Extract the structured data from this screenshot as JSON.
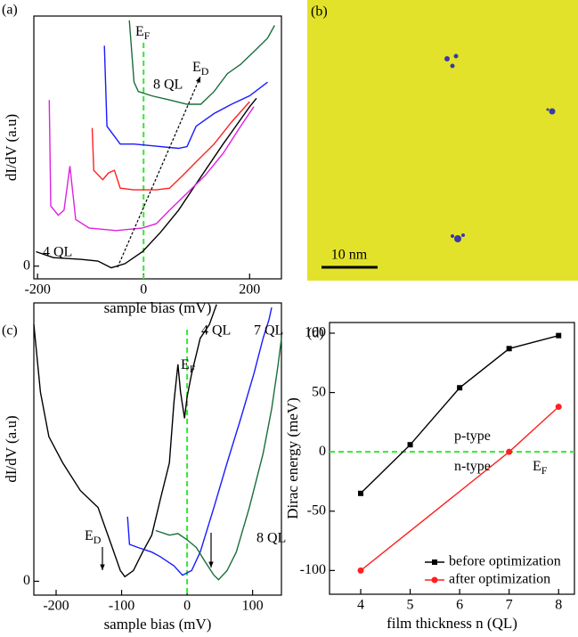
{
  "chart_data": [
    {
      "type": "line",
      "label": "(a)",
      "xlabel": "sample bias (mV)",
      "ylabel": "dI/dV (a.u)",
      "xlim": [
        -207,
        260
      ],
      "ylim": [
        -0.15,
        2.95
      ],
      "xticks": [
        -200,
        0,
        200
      ],
      "yticks": [
        0
      ],
      "reference_lines": [
        {
          "axis": "x",
          "value": 0,
          "color": "#33e833"
        }
      ],
      "annotations": [
        {
          "text": "E",
          "sub": "F"
        },
        {
          "text": "E",
          "sub": "D"
        }
      ],
      "series": [
        {
          "name": "4 QL",
          "color": "#000000",
          "x": [
            -203,
            -170,
            -119,
            -86,
            -61,
            -35,
            -2,
            32,
            66,
            99,
            150,
            200,
            213
          ],
          "values": [
            0.17,
            0.1,
            0.08,
            0.06,
            -0.02,
            0.03,
            0.17,
            0.4,
            0.66,
            0.97,
            1.44,
            1.88,
            1.98
          ]
        },
        {
          "color": "#e020e0",
          "x": [
            -178,
            -175,
            -161,
            -150,
            -139,
            -128,
            -103,
            -52,
            -2,
            24,
            49,
            82,
            116,
            150,
            183,
            208
          ],
          "values": [
            1.96,
            0.71,
            0.6,
            0.66,
            1.18,
            0.55,
            0.45,
            0.42,
            0.45,
            0.5,
            0.66,
            0.86,
            1.07,
            1.33,
            1.65,
            1.88
          ]
        },
        {
          "color": "#ff2020",
          "x": [
            -97,
            -94,
            -77,
            -66,
            -55,
            -44,
            -18,
            24,
            49,
            74,
            99,
            133,
            166,
            200
          ],
          "values": [
            1.63,
            1.13,
            1.02,
            1.1,
            1.13,
            0.92,
            0.9,
            0.9,
            0.92,
            1.07,
            1.23,
            1.44,
            1.7,
            1.94
          ]
        },
        {
          "color": "#1a1aff",
          "x": [
            -74,
            -69,
            -44,
            -18,
            15,
            66,
            82,
            99,
            133,
            166,
            200,
            234
          ],
          "values": [
            2.6,
            1.65,
            1.44,
            1.44,
            1.42,
            1.39,
            1.41,
            1.65,
            1.8,
            1.91,
            2.01,
            2.17
          ]
        },
        {
          "name": "8 QL",
          "color": "#1a6e3a",
          "x": [
            -27,
            -18,
            -10,
            15,
            49,
            82,
            108,
            133,
            158,
            183,
            208,
            234,
            247
          ],
          "values": [
            2.9,
            2.17,
            2.06,
            2.01,
            1.96,
            1.91,
            1.91,
            2.06,
            2.27,
            2.38,
            2.53,
            2.69,
            2.84
          ]
        }
      ]
    },
    {
      "type": "line",
      "label": "(c)",
      "xlabel": "sample bias (mV)",
      "ylabel": "dI/dV (a.u)",
      "xlim": [
        -234,
        144
      ],
      "ylim": [
        -0.09,
        1.81
      ],
      "xticks": [
        -200,
        -100,
        0,
        100
      ],
      "yticks": [
        0
      ],
      "reference_lines": [
        {
          "axis": "x",
          "value": 0,
          "color": "#33e833"
        }
      ],
      "annotations": [
        {
          "text": "E",
          "sub": "F"
        },
        {
          "text": "E",
          "sub": "D"
        }
      ],
      "series": [
        {
          "name": "4 QL",
          "color": "#000000",
          "x": [
            -234,
            -224,
            -211,
            -190,
            -163,
            -136,
            -116,
            -102,
            -95,
            -82,
            -68,
            -54,
            -41,
            -27,
            -20,
            -14,
            -10,
            -4,
            0,
            7,
            20,
            34,
            45
          ],
          "values": [
            1.67,
            1.23,
            0.94,
            0.77,
            0.59,
            0.48,
            0.24,
            0.07,
            0.03,
            0.07,
            0.19,
            0.3,
            0.53,
            0.77,
            1.17,
            1.41,
            1.23,
            1.06,
            1.2,
            1.35,
            1.58,
            1.67,
            1.8
          ]
        },
        {
          "name": "7 QL",
          "color": "#1a1aff",
          "x": [
            -91,
            -88,
            -75,
            -54,
            -41,
            -20,
            -7,
            7,
            20,
            41,
            61,
            82,
            102,
            116,
            125,
            129
          ],
          "values": [
            0.42,
            0.24,
            0.22,
            0.19,
            0.16,
            0.1,
            0.04,
            0.07,
            0.19,
            0.48,
            0.77,
            1.06,
            1.35,
            1.58,
            1.7,
            1.78
          ]
        },
        {
          "name": "8 QL",
          "color": "#1a6e3a",
          "x": [
            -48,
            -27,
            -14,
            0,
            14,
            27,
            41,
            48,
            61,
            75,
            95,
            116,
            129,
            139,
            144
          ],
          "values": [
            0.33,
            0.3,
            0.31,
            0.27,
            0.22,
            0.13,
            0.04,
            0.01,
            0.07,
            0.19,
            0.48,
            0.83,
            1.12,
            1.41,
            1.58
          ]
        }
      ]
    },
    {
      "type": "line",
      "label": "(d)",
      "xlabel": "film thickness n (QL)",
      "ylabel": "Dirac energy (meV)",
      "xlim": [
        3.37,
        8.32
      ],
      "ylim": [
        -120,
        109
      ],
      "xticks": [
        4,
        5,
        6,
        7,
        8
      ],
      "yticks": [
        100,
        50,
        0,
        -50,
        -100
      ],
      "reference_lines": [
        {
          "axis": "y",
          "value": 0,
          "color": "#33e833"
        }
      ],
      "annotations": [
        {
          "text": "p-type"
        },
        {
          "text": "n-type"
        },
        {
          "text": "E",
          "sub": "F"
        }
      ],
      "legend": "lower right",
      "series": [
        {
          "name": "before optimization",
          "color": "#000000",
          "marker": "square",
          "x": [
            4,
            5,
            6,
            7,
            8
          ],
          "values": [
            -35,
            6,
            54,
            87,
            98
          ]
        },
        {
          "name": "after optimization",
          "color": "#ff2020",
          "marker": "circle",
          "x": [
            4,
            7,
            8
          ],
          "values": [
            -100,
            0,
            38
          ]
        }
      ]
    }
  ],
  "image_panel": {
    "label": "(b)",
    "scale_bar": "10 nm"
  }
}
